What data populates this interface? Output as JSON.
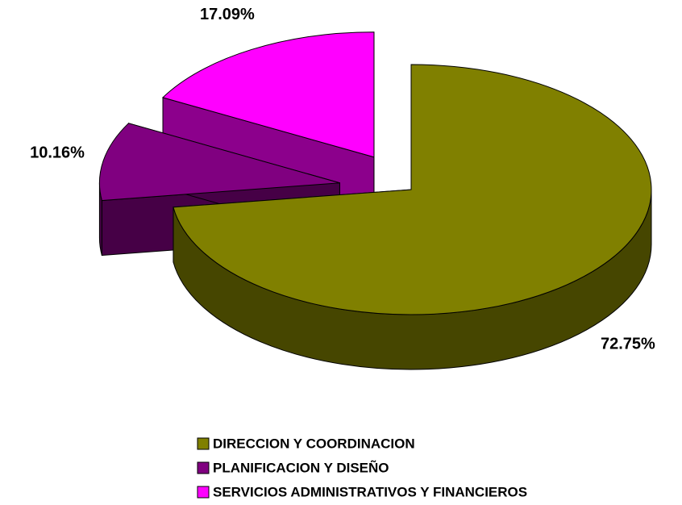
{
  "chart_data": {
    "type": "pie",
    "categories": [
      "DIRECCION Y COORDINACION",
      "PLANIFICACION Y DISEÑO",
      "SERVICIOS ADMINISTRATIVOS Y FINANCIEROS"
    ],
    "values": [
      72.75,
      10.16,
      17.09
    ],
    "value_labels": [
      "72.75%",
      "10.16%",
      "17.09%"
    ],
    "colors": [
      "#808000",
      "#800080",
      "#ff00ff"
    ],
    "legend": "bottom"
  }
}
